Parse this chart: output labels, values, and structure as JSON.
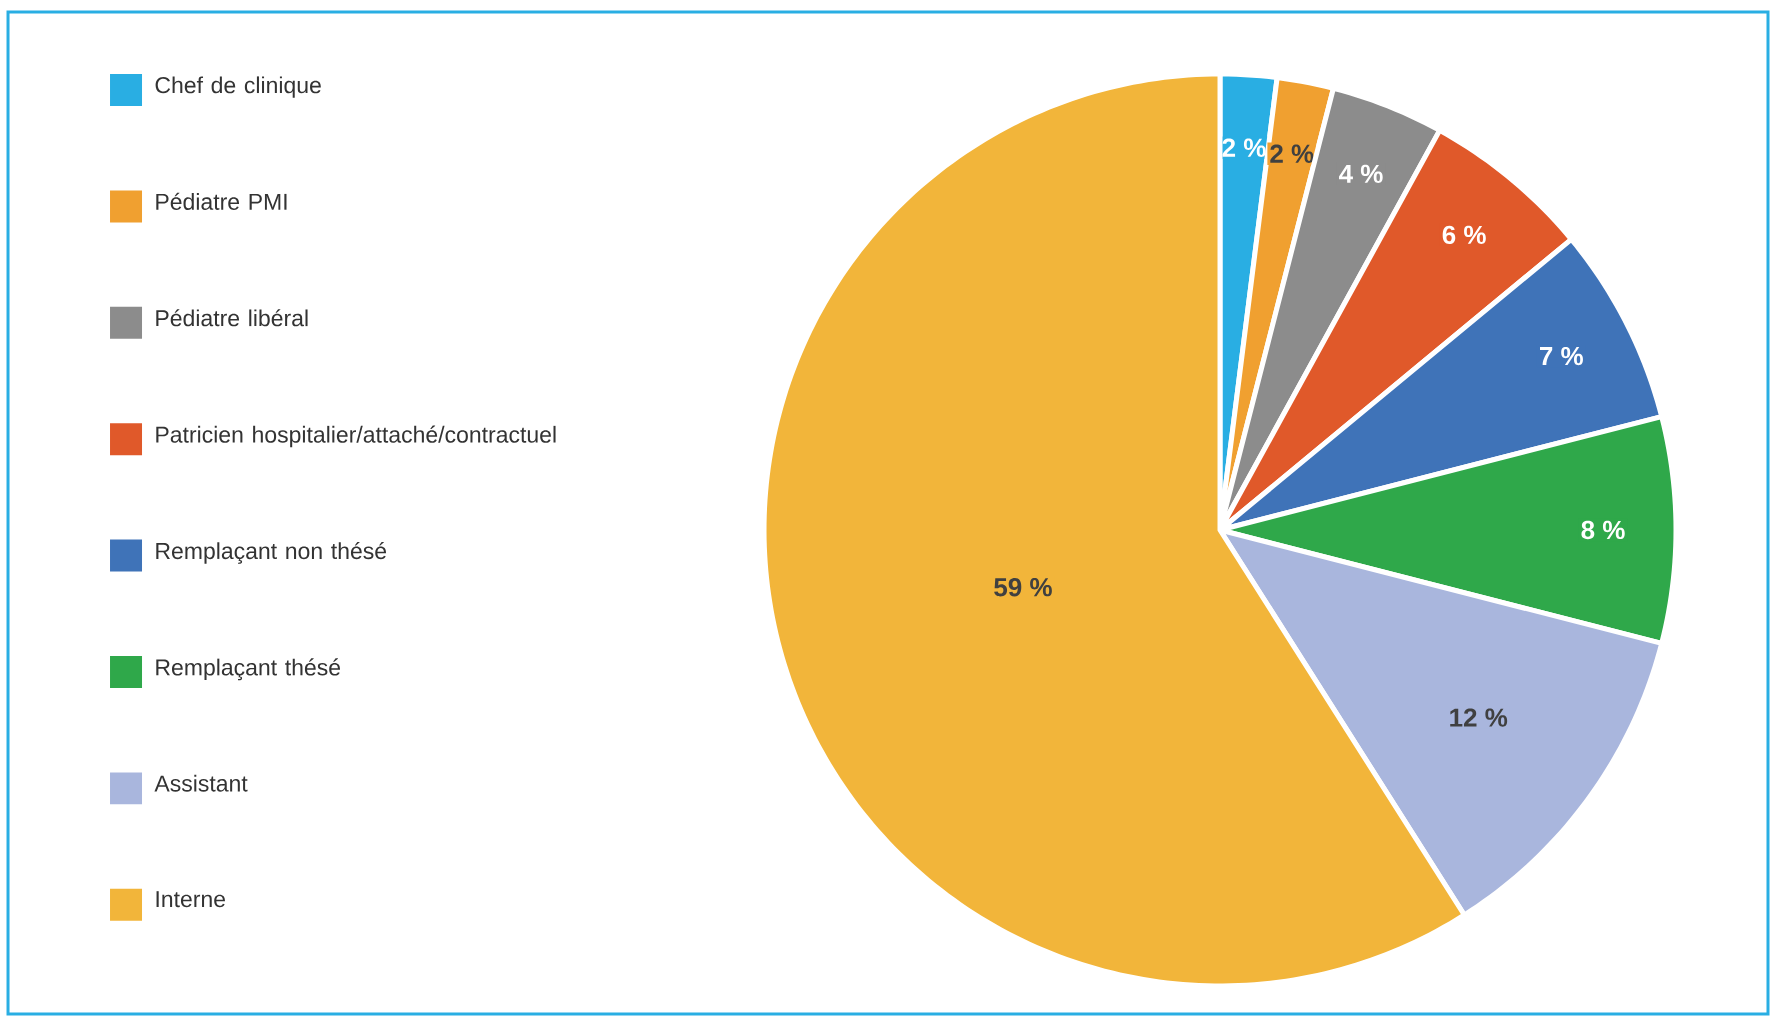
{
  "chart_data": {
    "type": "pie",
    "categories": [
      "Chef de clinique",
      "Pédiatre PMI",
      "Pédiatre libéral",
      "Patricien hospitalier/attaché/contractuel",
      "Remplaçant non thésé",
      "Remplaçant thésé",
      "Assistant",
      "Interne"
    ],
    "values": [
      2,
      2,
      4,
      6,
      7,
      8,
      12,
      59
    ],
    "colors": [
      "#29aee3",
      "#f0a030",
      "#8c8c8c",
      "#e0592a",
      "#3f73b8",
      "#2fa84a",
      "#a9b6dd",
      "#f2b53a"
    ],
    "value_labels": [
      "2 %",
      "2 %",
      "4 %",
      "6 %",
      "7 %",
      "8 %",
      "12 %",
      "59 %"
    ],
    "legend": "left"
  }
}
